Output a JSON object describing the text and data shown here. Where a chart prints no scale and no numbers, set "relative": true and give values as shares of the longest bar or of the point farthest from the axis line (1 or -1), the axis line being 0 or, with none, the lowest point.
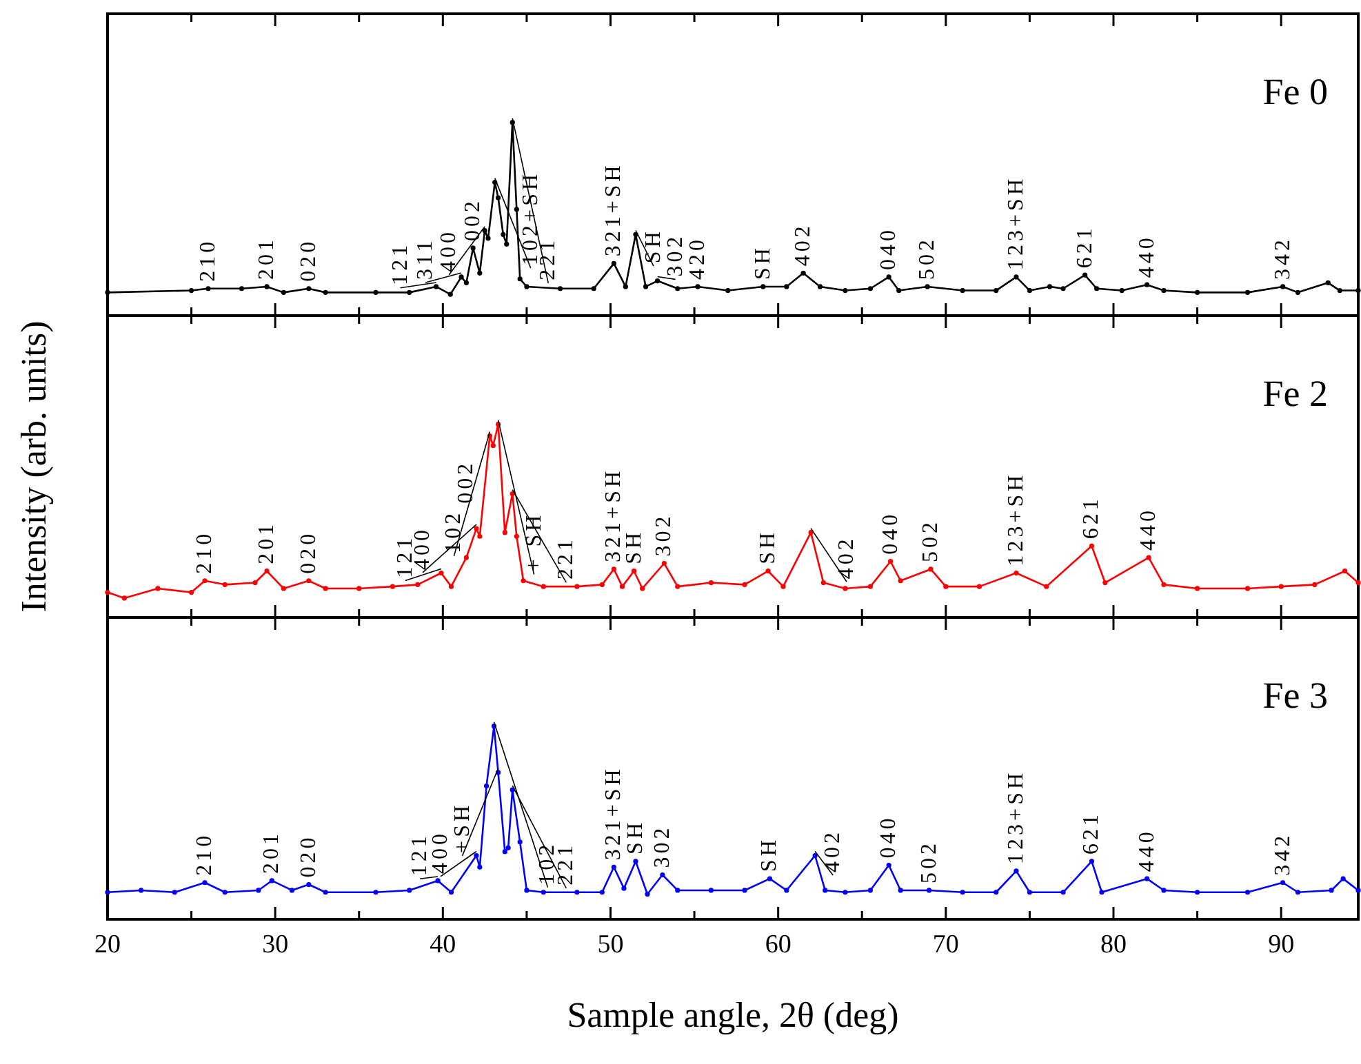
{
  "chart_data": [
    {
      "type": "line",
      "title": "Fe 0",
      "relative": true,
      "marker": "circle",
      "line_style": "solid",
      "tick_labels": false,
      "xlim": [
        20,
        94.6
      ],
      "xticks": [
        20,
        {
          "value": 25,
          "label": null
        },
        30,
        {
          "value": 35,
          "label": null
        },
        40,
        {
          "value": 45,
          "label": null
        },
        50,
        {
          "value": 55,
          "label": null
        },
        60,
        {
          "value": 65,
          "label": null
        },
        70,
        {
          "value": 75,
          "label": null
        },
        80,
        {
          "value": 85,
          "label": null
        },
        90
      ],
      "x": [
        20,
        25,
        26,
        28,
        29.5,
        30.5,
        32,
        33,
        36,
        38,
        39.6,
        40.45,
        41.1,
        41.4,
        41.8,
        42.2,
        42.5,
        42.7,
        43.1,
        43.3,
        43.6,
        43.8,
        44.15,
        44.4,
        44.6,
        45,
        47,
        49,
        50.2,
        50.9,
        51.5,
        52.1,
        52.8,
        54,
        55.2,
        57,
        59.1,
        60.5,
        61.5,
        62.5,
        64,
        65.5,
        66.6,
        67.2,
        68.9,
        71,
        73,
        74.2,
        75,
        76.2,
        77,
        78.3,
        79,
        80.5,
        82,
        83,
        85,
        88,
        90.1,
        91,
        92.8,
        93.5,
        94.6
      ],
      "series": [
        {
          "color": "#000000",
          "values": [
            0.12,
            0.13,
            0.14,
            0.14,
            0.15,
            0.12,
            0.14,
            0.12,
            0.12,
            0.12,
            0.15,
            0.11,
            0.2,
            0.17,
            0.35,
            0.22,
            0.44,
            0.4,
            0.69,
            0.61,
            0.42,
            0.37,
            1,
            0.55,
            0.19,
            0.15,
            0.14,
            0.14,
            0.27,
            0.15,
            0.42,
            0.15,
            0.18,
            0.14,
            0.15,
            0.13,
            0.15,
            0.15,
            0.22,
            0.15,
            0.13,
            0.14,
            0.2,
            0.13,
            0.15,
            0.13,
            0.13,
            0.2,
            0.13,
            0.15,
            0.14,
            0.21,
            0.14,
            0.13,
            0.16,
            0.13,
            0.12,
            0.12,
            0.15,
            0.12,
            0.17,
            0.13,
            0.13
          ]
        }
      ],
      "annotations": [
        {
          "text": "210",
          "x": 26,
          "y": 0.14
        },
        {
          "text": "201",
          "x": 29.5,
          "y": 0.15
        },
        {
          "text": "020",
          "x": 32,
          "y": 0.14
        },
        {
          "text": "121",
          "x": 39.6,
          "y": 0.15
        },
        {
          "text": "311",
          "x": 41.1,
          "y": 0.2
        },
        {
          "text": "002",
          "x": 41.8,
          "y": 0.35
        },
        {
          "text": "400",
          "x": 42.5,
          "y": 0.44
        },
        {
          "text": "102+SH",
          "x": 43.1,
          "y": 0.69
        },
        {
          "text": "221",
          "x": 44.15,
          "y": 1
        },
        {
          "text": "321+SH",
          "x": 50.2,
          "y": 0.27
        },
        {
          "text": "SH",
          "x": 51.5,
          "y": 0.42
        },
        {
          "text": "302",
          "x": 52.8,
          "y": 0.18
        },
        {
          "text": "420",
          "x": 55.2,
          "y": 0.15
        },
        {
          "text": "SH",
          "x": 59.1,
          "y": 0.15
        },
        {
          "text": "402",
          "x": 61.5,
          "y": 0.22
        },
        {
          "text": "040",
          "x": 66.6,
          "y": 0.2
        },
        {
          "text": "502",
          "x": 68.9,
          "y": 0.15
        },
        {
          "text": "123+SH",
          "x": 74.2,
          "y": 0.2
        },
        {
          "text": "621",
          "x": 78.3,
          "y": 0.21
        },
        {
          "text": "440",
          "x": 82,
          "y": 0.16
        },
        {
          "text": "342",
          "x": 90.1,
          "y": 0.15
        }
      ]
    },
    {
      "type": "line",
      "title": "Fe 2",
      "ylabel": "Intensity (arb. units)",
      "relative": true,
      "marker": "circle",
      "line_style": "solid",
      "tick_labels": false,
      "xlim": [
        20,
        94.6
      ],
      "xticks": [
        20,
        {
          "value": 25,
          "label": null
        },
        30,
        {
          "value": 35,
          "label": null
        },
        40,
        {
          "value": 45,
          "label": null
        },
        50,
        {
          "value": 55,
          "label": null
        },
        60,
        {
          "value": 65,
          "label": null
        },
        70,
        {
          "value": 75,
          "label": null
        },
        80,
        {
          "value": 85,
          "label": null
        },
        90
      ],
      "x": [
        20,
        21,
        23,
        25,
        25.8,
        27,
        28.8,
        29.5,
        30.5,
        32,
        33,
        35,
        37,
        38.5,
        39.9,
        40.5,
        41.4,
        42,
        42.2,
        42.8,
        43,
        43.3,
        43.7,
        44.15,
        44.4,
        44.8,
        46,
        48,
        49.5,
        50.2,
        50.7,
        51.4,
        51.9,
        53.2,
        54,
        56,
        58,
        59.4,
        60.3,
        61.95,
        62.7,
        64,
        65.5,
        66.7,
        67.3,
        69.1,
        70,
        72,
        74.2,
        76,
        78.7,
        79.5,
        82.1,
        83,
        85,
        88,
        90,
        92,
        93.8,
        94.6
      ],
      "series": [
        {
          "color": "#ff0000",
          "values": [
            0.13,
            0.1,
            0.15,
            0.13,
            0.19,
            0.17,
            0.18,
            0.24,
            0.15,
            0.19,
            0.15,
            0.15,
            0.16,
            0.17,
            0.23,
            0.16,
            0.31,
            0.46,
            0.42,
            0.94,
            0.89,
            1,
            0.44,
            0.64,
            0.42,
            0.19,
            0.16,
            0.16,
            0.17,
            0.25,
            0.16,
            0.24,
            0.15,
            0.28,
            0.16,
            0.18,
            0.17,
            0.24,
            0.16,
            0.44,
            0.18,
            0.15,
            0.16,
            0.29,
            0.19,
            0.25,
            0.16,
            0.16,
            0.23,
            0.16,
            0.37,
            0.18,
            0.31,
            0.17,
            0.15,
            0.15,
            0.16,
            0.17,
            0.24,
            0.18
          ]
        }
      ],
      "annotations": [
        {
          "text": "210",
          "x": 25.8,
          "y": 0.19
        },
        {
          "text": "201",
          "x": 29.5,
          "y": 0.24
        },
        {
          "text": "020",
          "x": 32,
          "y": 0.19
        },
        {
          "text": "121",
          "x": 39.9,
          "y": 0.23
        },
        {
          "text": "002",
          "x": 41.4,
          "y": 0.31
        },
        {
          "text": "400",
          "x": 42,
          "y": 0.46
        },
        {
          "text": "102",
          "x": 42.8,
          "y": 0.94
        },
        {
          "text": "+ SH",
          "x": 43.3,
          "y": 1
        },
        {
          "text": "221",
          "x": 44.15,
          "y": 0.64
        },
        {
          "text": "321+SH",
          "x": 50.2,
          "y": 0.25
        },
        {
          "text": "SH",
          "x": 51.4,
          "y": 0.24
        },
        {
          "text": "302",
          "x": 53.2,
          "y": 0.28
        },
        {
          "text": "SH",
          "x": 59.4,
          "y": 0.24
        },
        {
          "text": "402",
          "x": 61.95,
          "y": 0.44
        },
        {
          "text": "040",
          "x": 66.7,
          "y": 0.29
        },
        {
          "text": "502",
          "x": 69.1,
          "y": 0.25
        },
        {
          "text": "123+SH",
          "x": 74.2,
          "y": 0.23
        },
        {
          "text": "621",
          "x": 78.7,
          "y": 0.37
        },
        {
          "text": "440",
          "x": 82.1,
          "y": 0.31
        }
      ]
    },
    {
      "type": "line",
      "title": "Fe 3",
      "xlabel": "Sample angle, 2θ (deg)",
      "relative": true,
      "marker": "circle",
      "line_style": "solid",
      "tick_labels": "x",
      "xlim": [
        20,
        94.6
      ],
      "xticks": [
        20,
        {
          "value": 25,
          "label": null
        },
        30,
        {
          "value": 35,
          "label": null
        },
        40,
        {
          "value": 45,
          "label": null
        },
        50,
        {
          "value": 55,
          "label": null
        },
        60,
        {
          "value": 65,
          "label": null
        },
        70,
        {
          "value": 75,
          "label": null
        },
        80,
        {
          "value": 85,
          "label": null
        },
        90
      ],
      "x": [
        20,
        22,
        24,
        25.8,
        27,
        29,
        29.8,
        31,
        32,
        33,
        36,
        38,
        39.7,
        40.5,
        42,
        42.2,
        42.6,
        43.05,
        43.3,
        43.7,
        43.9,
        44.15,
        44.6,
        45,
        46,
        48,
        49.5,
        50.2,
        50.8,
        51.5,
        52.2,
        53.1,
        54,
        56,
        58,
        59.5,
        60.5,
        62.2,
        62.8,
        64,
        65.5,
        66.6,
        67.3,
        69,
        71,
        73,
        74.2,
        75,
        77,
        78.7,
        79.3,
        82,
        83,
        85,
        88,
        90.1,
        91,
        93,
        93.7,
        94.6
      ],
      "series": [
        {
          "color": "#0000ff",
          "values": [
            0.14,
            0.15,
            0.14,
            0.19,
            0.14,
            0.15,
            0.2,
            0.15,
            0.18,
            0.14,
            0.14,
            0.15,
            0.2,
            0.14,
            0.33,
            0.27,
            0.69,
            1,
            0.76,
            0.35,
            0.37,
            0.67,
            0.4,
            0.15,
            0.14,
            0.14,
            0.14,
            0.27,
            0.16,
            0.3,
            0.13,
            0.23,
            0.15,
            0.15,
            0.15,
            0.21,
            0.15,
            0.33,
            0.15,
            0.14,
            0.15,
            0.28,
            0.15,
            0.15,
            0.14,
            0.14,
            0.25,
            0.14,
            0.14,
            0.3,
            0.14,
            0.21,
            0.15,
            0.14,
            0.14,
            0.19,
            0.14,
            0.15,
            0.21,
            0.15
          ]
        }
      ],
      "annotations": [
        {
          "text": "210",
          "x": 25.8,
          "y": 0.19
        },
        {
          "text": "201",
          "x": 29.8,
          "y": 0.2
        },
        {
          "text": "020",
          "x": 32,
          "y": 0.18
        },
        {
          "text": "121",
          "x": 39.7,
          "y": 0.2
        },
        {
          "text": "400",
          "x": 42,
          "y": 0.33
        },
        {
          "text": "102",
          "x": 43.05,
          "y": 1
        },
        {
          "text": "+SH",
          "x": 43.3,
          "y": 0.76
        },
        {
          "text": "221",
          "x": 44.15,
          "y": 0.67
        },
        {
          "text": "321+SH",
          "x": 50.2,
          "y": 0.27
        },
        {
          "text": "SH",
          "x": 51.5,
          "y": 0.3
        },
        {
          "text": "302",
          "x": 53.1,
          "y": 0.23
        },
        {
          "text": "SH",
          "x": 59.5,
          "y": 0.21
        },
        {
          "text": "402",
          "x": 62.2,
          "y": 0.33
        },
        {
          "text": "040",
          "x": 66.6,
          "y": 0.28
        },
        {
          "text": "502",
          "x": 69,
          "y": 0.15
        },
        {
          "text": "123+SH",
          "x": 74.2,
          "y": 0.25
        },
        {
          "text": "621",
          "x": 78.7,
          "y": 0.3
        },
        {
          "text": "440",
          "x": 82,
          "y": 0.21
        },
        {
          "text": "342",
          "x": 90.1,
          "y": 0.19
        }
      ]
    }
  ]
}
